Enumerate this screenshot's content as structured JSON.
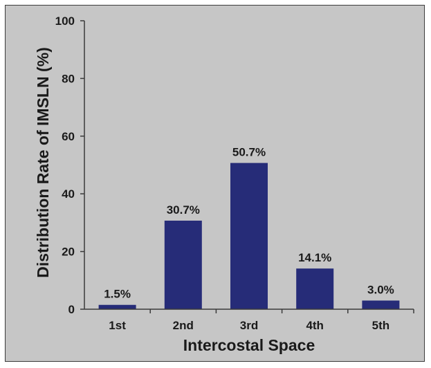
{
  "chart_data": {
    "type": "bar",
    "title": "",
    "xlabel": "Intercostal Space",
    "ylabel": "Distribution Rate of IMSLN (%)",
    "categories": [
      "1st",
      "2nd",
      "3rd",
      "4th",
      "5th"
    ],
    "values": [
      1.5,
      30.7,
      50.7,
      14.1,
      3.0
    ],
    "value_labels": [
      "1.5%",
      "30.7%",
      "50.7%",
      "14.1%",
      "3.0%"
    ],
    "ylim": [
      0,
      100
    ],
    "yticks": [
      0,
      20,
      40,
      60,
      80,
      100
    ],
    "ytick_labels": [
      "0",
      "20",
      "40",
      "60",
      "80",
      "100"
    ],
    "grid": false,
    "legend": "none",
    "colors": {
      "bar": "#262c78",
      "background": "#c6c6c6",
      "axis": "#3a3a3a"
    }
  }
}
